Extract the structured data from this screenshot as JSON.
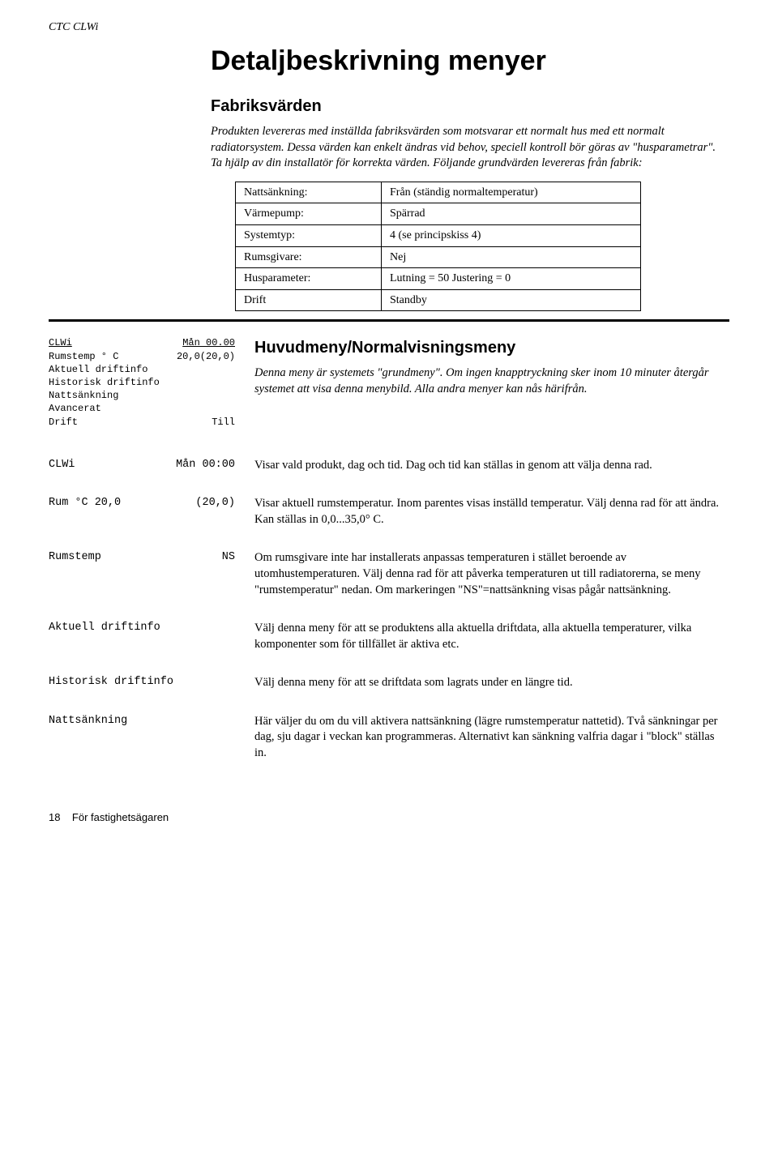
{
  "header_label": "CTC CLWi",
  "title": "Detaljbeskrivning menyer",
  "section_fabriksvarden": {
    "heading": "Fabriksvärden",
    "intro": "Produkten levereras med inställda fabriksvärden som motsvarar ett normalt hus med ett normalt radiatorsystem. Dessa värden kan enkelt ändras vid behov, speciell kontroll bör göras av \"husparametrar\". Ta hjälp av din installatör för korrekta värden. Följande grundvärden levereras från fabrik:",
    "rows": [
      {
        "k": "Nattsänkning:",
        "v": "Från (ständig normaltemperatur)"
      },
      {
        "k": "Värmepump:",
        "v": "Spärrad"
      },
      {
        "k": "Systemtyp:",
        "v": "4 (se principskiss 4)"
      },
      {
        "k": "Rumsgivare:",
        "v": "Nej"
      },
      {
        "k": "Husparameter:",
        "v": "Lutning = 50 Justering = 0"
      },
      {
        "k": "Drift",
        "v": "Standby"
      }
    ]
  },
  "lcd": {
    "top_left": "CLWi",
    "top_right": "Mån 00.00",
    "l1_left": "Rumstemp ° C",
    "l1_right": "20,0(20,0)",
    "l2": "Aktuell driftinfo",
    "l3": "Historisk driftinfo",
    "l4": "Nattsänkning",
    "l5": "Avancerat",
    "l6_left": "Drift",
    "l6_right": "Till"
  },
  "huvud": {
    "heading": "Huvudmeny/Normalvisningsmeny",
    "intro": "Denna meny är systemets \"grundmeny\". Om ingen knapptryckning sker inom 10 minuter återgår systemet att visa denna menybild. Alla andra menyer kan nås härifrån."
  },
  "defs": [
    {
      "term_l": "CLWi",
      "term_r": "Mån 00:00",
      "body": "Visar vald produkt, dag och tid. Dag och tid kan ställas in genom att välja denna rad."
    },
    {
      "term_l": "Rum °C 20,0",
      "term_r": "(20,0)",
      "body": "Visar aktuell rumstemperatur. Inom parentes visas inställd temperatur. Välj denna rad för att ändra. Kan ställas in 0,0...35,0° C."
    },
    {
      "term_l": "Rumstemp",
      "term_r": "NS",
      "body": "Om rumsgivare inte har installerats anpassas temperaturen i stället beroende av utomhustemperaturen. Välj denna rad för att påverka temperaturen ut till radiatorerna, se meny \"rumstemperatur\" nedan. Om markeringen \"NS\"=nattsänkning visas pågår nattsänkning."
    },
    {
      "term_l": "Aktuell driftinfo",
      "term_r": "",
      "body": "Välj denna meny för att se produktens alla aktuella driftdata, alla aktuella temperaturer, vilka komponenter som för tillfället är aktiva etc."
    },
    {
      "term_l": "Historisk driftinfo",
      "term_r": "",
      "body": "Välj denna meny för att se driftdata som lagrats under en längre tid."
    },
    {
      "term_l": "Nattsänkning",
      "term_r": "",
      "body": "Här väljer du om du vill aktivera nattsänkning (lägre rumstemperatur nattetid). Två sänkningar per dag, sju dagar i veckan kan programmeras. Alternativt kan sänkning valfria dagar i \"block\" ställas in."
    }
  ],
  "footer_page": "18",
  "footer_text": "För fastighetsägaren"
}
